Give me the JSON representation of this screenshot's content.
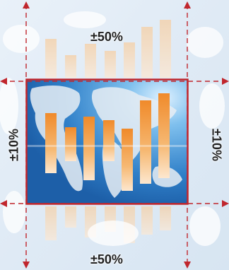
{
  "labels": {
    "top": "±50%",
    "bottom": "±50%",
    "left": "±10%",
    "right": "±10%"
  },
  "colors": {
    "frame": "#c0262d",
    "guides": "#c0262d",
    "sky": "#4a97d6",
    "bar": "#f0a04a"
  },
  "image": {
    "description_icon": "world-map-with-bar-chart"
  }
}
